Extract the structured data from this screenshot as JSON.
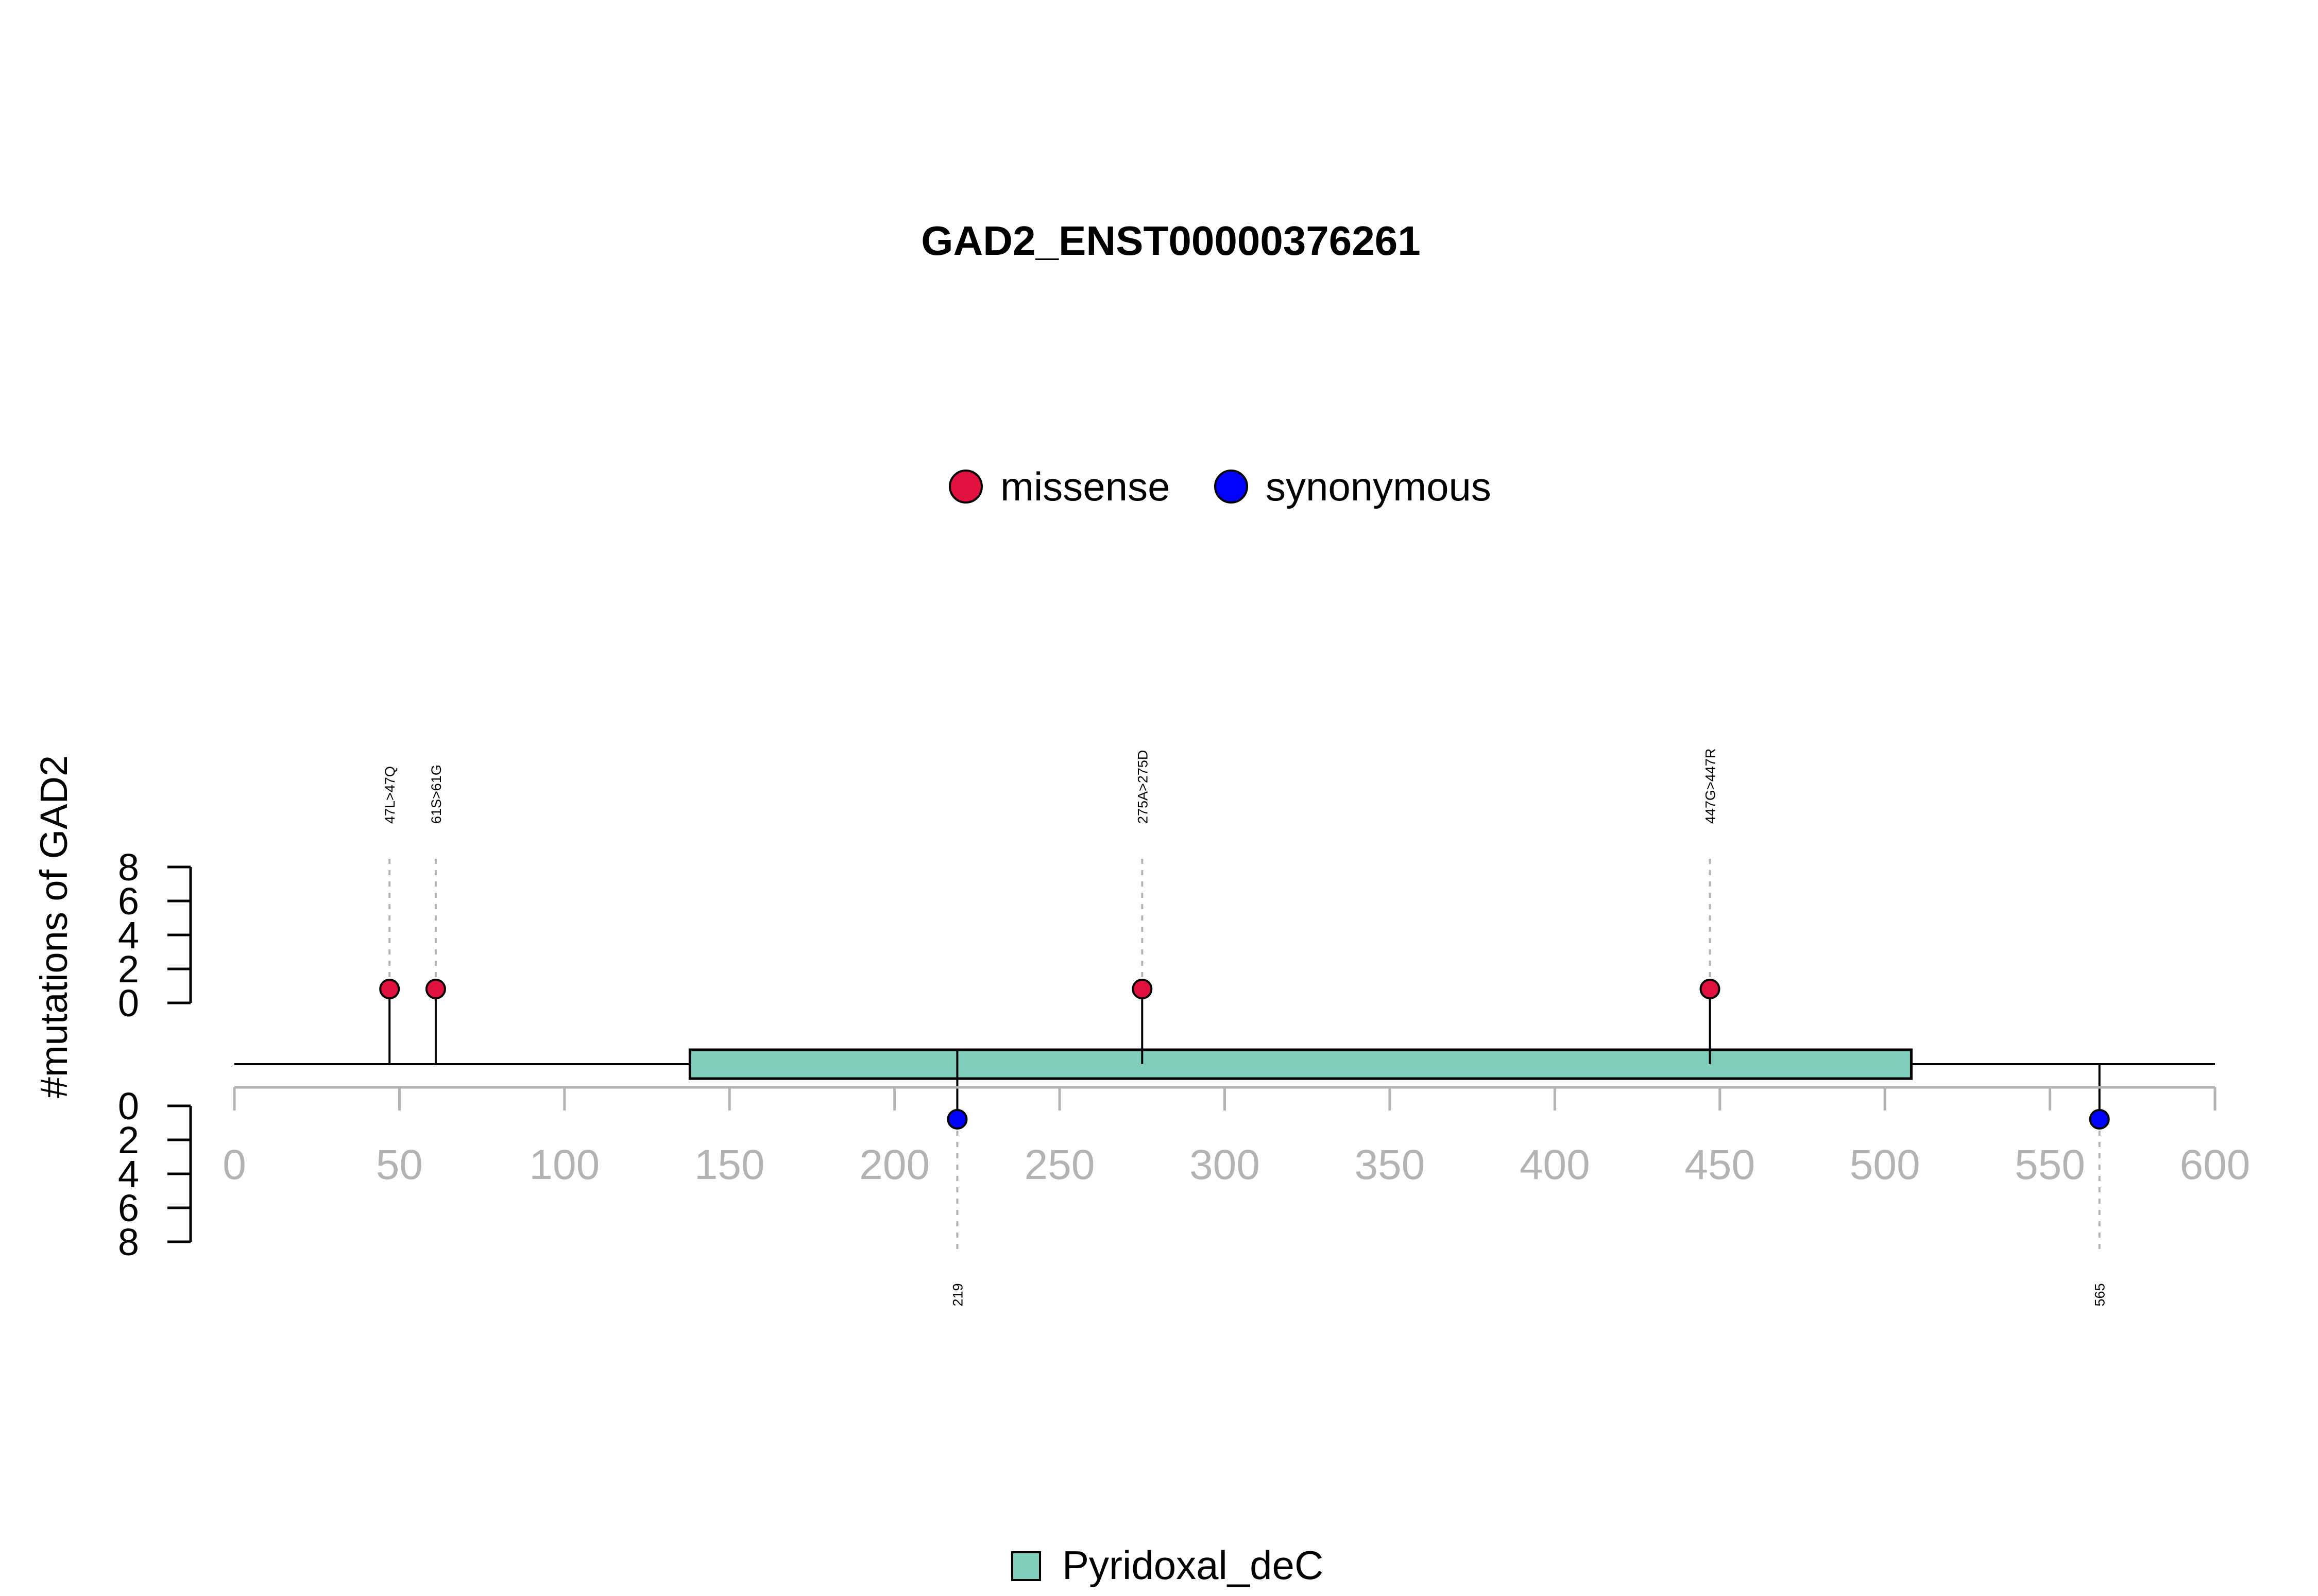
{
  "chart_data": {
    "type": "lollipop",
    "title": "GAD2_ENST00000376261",
    "ylabel": "#mutations of GAD2",
    "xlim": [
      0,
      600
    ],
    "x_ticks": [
      "0",
      "50",
      "100",
      "150",
      "200",
      "250",
      "300",
      "350",
      "400",
      "450",
      "500",
      "550",
      "600"
    ],
    "y_ticks": [
      "0",
      "2",
      "4",
      "6",
      "8"
    ],
    "ylim": [
      0,
      8
    ],
    "grid": false,
    "legend": {
      "placement": "top-center",
      "entries": [
        {
          "name": "missense",
          "color": "#e0103f"
        },
        {
          "name": "synonymous",
          "color": "#0000ff"
        }
      ]
    },
    "domain_legend": {
      "placement": "bottom-center",
      "entries": [
        {
          "name": "Pyridoxal_deC",
          "color": "#7fcdbb"
        }
      ]
    },
    "domains": [
      {
        "name": "Pyridoxal_deC",
        "start": 138,
        "end": 508,
        "color": "#7fcdbb"
      }
    ],
    "mutations": [
      {
        "position": 47,
        "count": 1,
        "type": "missense",
        "side": "top",
        "label": "47L>47Q"
      },
      {
        "position": 61,
        "count": 1,
        "type": "missense",
        "side": "top",
        "label": "61S>61G"
      },
      {
        "position": 275,
        "count": 1,
        "type": "missense",
        "side": "top",
        "label": "275A>275D"
      },
      {
        "position": 447,
        "count": 1,
        "type": "missense",
        "side": "top",
        "label": "447G>447R"
      },
      {
        "position": 219,
        "count": 1,
        "type": "synonymous",
        "side": "bottom",
        "label": "219"
      },
      {
        "position": 565,
        "count": 1,
        "type": "synonymous",
        "side": "bottom",
        "label": "565"
      }
    ],
    "colors": {
      "missense": "#e0103f",
      "synonymous": "#0000ff",
      "axis": "#b3b3b3",
      "guide": "#b3b3b3"
    }
  }
}
